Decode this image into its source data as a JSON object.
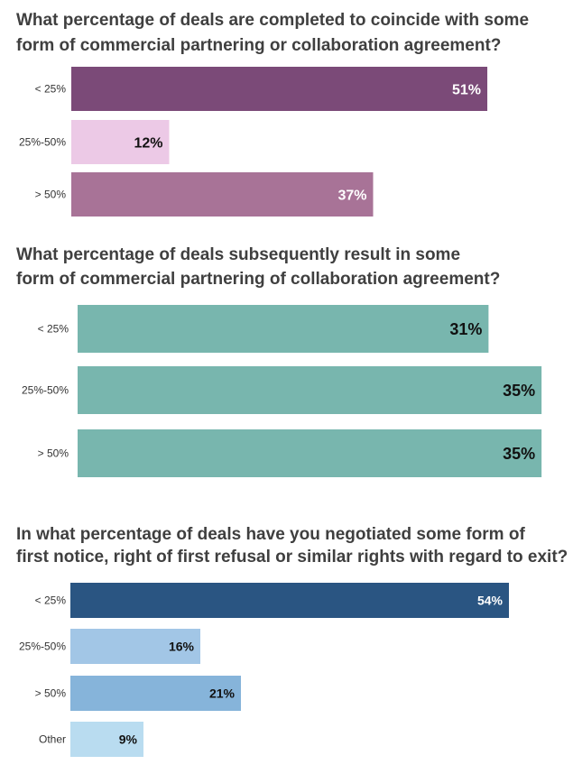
{
  "chart_data": [
    {
      "type": "bar",
      "orientation": "horizontal",
      "title_lines": [
        "What percentage of deals are completed to coincide with some",
        "form of commercial partnering or collaboration agreement?"
      ],
      "categories": [
        "< 25%",
        "25%-50%",
        "> 50%"
      ],
      "values": [
        51,
        12,
        37
      ],
      "value_labels": [
        "51%",
        "12%",
        "37%"
      ],
      "bar_colors": [
        "#7b4a78",
        "#ecc9e6",
        "#a87397"
      ],
      "label_colors": [
        "#ffffff",
        "#111111",
        "#ffffff"
      ],
      "unit": "%"
    },
    {
      "type": "bar",
      "orientation": "horizontal",
      "title_lines": [
        "What percentage of deals subsequently result in some",
        "form of commercial partnering of collaboration agreement?"
      ],
      "categories": [
        "< 25%",
        "25%-50%",
        "> 50%"
      ],
      "values": [
        31,
        35,
        35
      ],
      "value_labels": [
        "31%",
        "35%",
        "35%"
      ],
      "bar_colors": [
        "#78b6ae",
        "#78b6ae",
        "#78b6ae"
      ],
      "label_colors": [
        "#111111",
        "#111111",
        "#111111"
      ],
      "unit": "%"
    },
    {
      "type": "bar",
      "orientation": "horizontal",
      "title_lines": [
        "In what percentage of deals have you negotiated some form of",
        "first notice, right of first refusal or similar rights with regard to exit?"
      ],
      "categories": [
        "< 25%",
        "25%-50%",
        "> 50%",
        "Other"
      ],
      "values": [
        54,
        16,
        21,
        9
      ],
      "value_labels": [
        "54%",
        "16%",
        "21%",
        "9%"
      ],
      "bar_colors": [
        "#2a5582",
        "#a2c6e6",
        "#86b4da",
        "#b9dcf0"
      ],
      "label_colors": [
        "#ffffff",
        "#111111",
        "#111111",
        "#111111"
      ],
      "unit": "%"
    }
  ]
}
